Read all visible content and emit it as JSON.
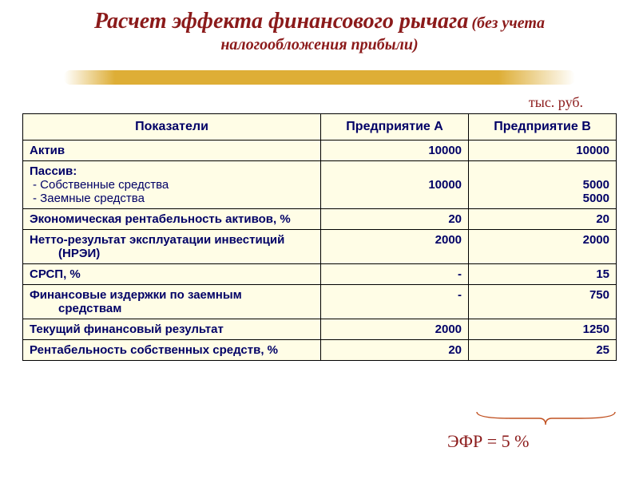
{
  "title": {
    "main": "Расчет эффекта финансового рычага",
    "sub": "(без учета налогообложения прибыли)"
  },
  "unit_label": "тыс. руб.",
  "table": {
    "headers": {
      "indicator": "Показатели",
      "a": "Предприятие А",
      "b": "Предприятие В"
    },
    "rows": [
      {
        "kind": "simple",
        "label": "Актив",
        "a": "10000",
        "b": "10000"
      },
      {
        "kind": "passive",
        "label": "Пассив:",
        "sub1": "Собственные средства",
        "sub2": "Заемные средства",
        "a_line1": "",
        "a_line2": "10000",
        "a_line3": "",
        "b_line1": "",
        "b_line2": "5000",
        "b_line3": "5000"
      },
      {
        "kind": "simple",
        "label": "Экономическая рентабельность активов, %",
        "a": "20",
        "b": "20"
      },
      {
        "kind": "wrap",
        "label_l1": "Нетто-результат эксплуатации инвестиций",
        "label_l2": "(НРЭИ)",
        "a": "2000",
        "b": "2000"
      },
      {
        "kind": "simple",
        "label": "СРСП, %",
        "a": "-",
        "b": "15"
      },
      {
        "kind": "wrap",
        "label_l1": "Финансовые издержки по заемным",
        "label_l2": "средствам",
        "a": "-",
        "b": "750"
      },
      {
        "kind": "simple",
        "label": "Текущий финансовый результат",
        "a": "2000",
        "b": "1250"
      },
      {
        "kind": "simple",
        "label": "Рентабельность собственных средств, %",
        "a": "20",
        "b": "25"
      }
    ]
  },
  "efr_label": "ЭФР = 5 %",
  "colors": {
    "title": "#8b1a1a",
    "table_bg": "#fffde6",
    "text": "#000066",
    "brush": "#daa520",
    "brace": "#c05020"
  }
}
